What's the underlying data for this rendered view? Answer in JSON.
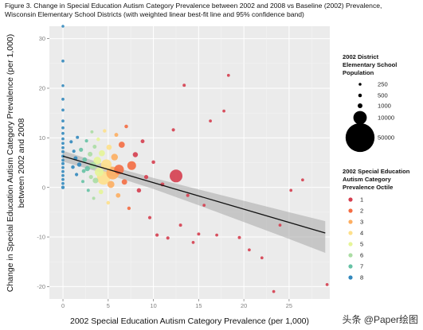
{
  "header": {
    "title_line1": "Figure 3. Change in Special Education Autism Category Prevalence between 2002 and 2008 vs Baseline (2002) Prevalence,",
    "title_line2": "Wisconsin Elementary School Districts (with weighted linear best-fit line and 95% confidence band)"
  },
  "watermark": {
    "text": "头条 @Paper绘图"
  },
  "chart_data": {
    "type": "scatter",
    "xlabel": "2002 Special Education Autism Category Prevalence (per 1,000)",
    "ylabel_line1": "Change in Special Education Autism Category Prevalence (per 1,000)",
    "ylabel_line2": "between 2002 and 2008",
    "xlim": [
      -1.5,
      29.5
    ],
    "ylim": [
      -22.5,
      32.5
    ],
    "x_ticks": [
      0,
      5,
      10,
      15,
      20,
      25
    ],
    "y_ticks": [
      -20,
      -10,
      0,
      10,
      20,
      30
    ],
    "grid": true,
    "background": "#ebebeb",
    "fit_line": {
      "x": [
        0,
        29
      ],
      "y": [
        6.3,
        -9.2
      ]
    },
    "confidence_band": {
      "x": [
        0,
        5,
        10,
        15,
        20,
        25,
        29
      ],
      "upper": [
        7.4,
        4.4,
        1.9,
        -0.4,
        -2.7,
        -5.0,
        -6.8
      ],
      "lower": [
        5.2,
        2.6,
        -0.3,
        -3.6,
        -7.0,
        -10.4,
        -13.2
      ]
    },
    "size_legend": {
      "title_lines": [
        "2002 District",
        "Elementary School",
        "Population"
      ],
      "entries": [
        {
          "label": "250",
          "value": 250
        },
        {
          "label": "500",
          "value": 500
        },
        {
          "label": "1000",
          "value": 1000
        },
        {
          "label": "10000",
          "value": 10000
        },
        {
          "label": "50000",
          "value": 50000
        }
      ]
    },
    "color_legend": {
      "title_lines": [
        "2002 Special Education",
        "Autism Category",
        "Prevalence Octile"
      ],
      "entries": [
        {
          "label": "1",
          "color": "#d53e4f"
        },
        {
          "label": "2",
          "color": "#f46d43"
        },
        {
          "label": "3",
          "color": "#fdae61"
        },
        {
          "label": "4",
          "color": "#fee08b"
        },
        {
          "label": "5",
          "color": "#e6f598"
        },
        {
          "label": "6",
          "color": "#abdda4"
        },
        {
          "label": "7",
          "color": "#66c2a5"
        },
        {
          "label": "8",
          "color": "#3288bd"
        }
      ]
    },
    "points": [
      {
        "x": 0,
        "y": 32.5,
        "pop": 250,
        "octile": 8
      },
      {
        "x": 0,
        "y": 25.5,
        "pop": 300,
        "octile": 8
      },
      {
        "x": 0,
        "y": 20.5,
        "pop": 250,
        "octile": 8
      },
      {
        "x": 0,
        "y": 17.8,
        "pop": 300,
        "octile": 8
      },
      {
        "x": 0,
        "y": 15.6,
        "pop": 300,
        "octile": 8
      },
      {
        "x": 0,
        "y": 13.4,
        "pop": 300,
        "octile": 8
      },
      {
        "x": 0,
        "y": 12.0,
        "pop": 300,
        "octile": 8
      },
      {
        "x": 0,
        "y": 10.9,
        "pop": 300,
        "octile": 8
      },
      {
        "x": 0,
        "y": 9.8,
        "pop": 300,
        "octile": 8
      },
      {
        "x": 0,
        "y": 8.9,
        "pop": 300,
        "octile": 8
      },
      {
        "x": 0,
        "y": 8.0,
        "pop": 300,
        "octile": 8
      },
      {
        "x": 0,
        "y": 7.2,
        "pop": 350,
        "octile": 8
      },
      {
        "x": 0,
        "y": 6.3,
        "pop": 350,
        "octile": 8
      },
      {
        "x": 0,
        "y": 5.5,
        "pop": 300,
        "octile": 8
      },
      {
        "x": 0,
        "y": 4.8,
        "pop": 350,
        "octile": 8
      },
      {
        "x": 0,
        "y": 4.0,
        "pop": 300,
        "octile": 8
      },
      {
        "x": 0,
        "y": 3.2,
        "pop": 300,
        "octile": 8
      },
      {
        "x": 0,
        "y": 2.4,
        "pop": 300,
        "octile": 8
      },
      {
        "x": 0,
        "y": 1.6,
        "pop": 300,
        "octile": 8
      },
      {
        "x": 0,
        "y": 0.8,
        "pop": 300,
        "octile": 8
      },
      {
        "x": 0,
        "y": 0.0,
        "pop": 450,
        "octile": 8
      },
      {
        "x": 0.9,
        "y": 9.2,
        "pop": 400,
        "octile": 8
      },
      {
        "x": 1.1,
        "y": 4.1,
        "pop": 500,
        "octile": 8
      },
      {
        "x": 1.2,
        "y": 7.3,
        "pop": 400,
        "octile": 8
      },
      {
        "x": 1.4,
        "y": 5.9,
        "pop": 600,
        "octile": 8
      },
      {
        "x": 1.5,
        "y": 2.6,
        "pop": 400,
        "octile": 8
      },
      {
        "x": 1.6,
        "y": 10.1,
        "pop": 350,
        "octile": 8
      },
      {
        "x": 1.8,
        "y": 4.6,
        "pop": 800,
        "octile": 8
      },
      {
        "x": 2.0,
        "y": 7.6,
        "pop": 700,
        "octile": 7
      },
      {
        "x": 2.2,
        "y": 1.2,
        "pop": 350,
        "octile": 7
      },
      {
        "x": 2.3,
        "y": 3.3,
        "pop": 600,
        "octile": 7
      },
      {
        "x": 2.4,
        "y": 5.6,
        "pop": 900,
        "octile": 7
      },
      {
        "x": 2.6,
        "y": 9.4,
        "pop": 400,
        "octile": 7
      },
      {
        "x": 2.7,
        "y": 3.8,
        "pop": 1200,
        "octile": 7
      },
      {
        "x": 2.8,
        "y": -0.6,
        "pop": 350,
        "octile": 7
      },
      {
        "x": 3.0,
        "y": 6.7,
        "pop": 1000,
        "octile": 6
      },
      {
        "x": 3.1,
        "y": 2.1,
        "pop": 700,
        "octile": 6
      },
      {
        "x": 3.2,
        "y": 11.2,
        "pop": 350,
        "octile": 6
      },
      {
        "x": 3.3,
        "y": 4.4,
        "pop": 2500,
        "octile": 6
      },
      {
        "x": 3.4,
        "y": -2.2,
        "pop": 350,
        "octile": 6
      },
      {
        "x": 3.5,
        "y": 8.2,
        "pop": 600,
        "octile": 6
      },
      {
        "x": 3.6,
        "y": 1.4,
        "pop": 1500,
        "octile": 6
      },
      {
        "x": 3.8,
        "y": 5.4,
        "pop": 3000,
        "octile": 5
      },
      {
        "x": 3.9,
        "y": 9.7,
        "pop": 500,
        "octile": 5
      },
      {
        "x": 4.0,
        "y": 3.1,
        "pop": 4000,
        "octile": 5
      },
      {
        "x": 4.2,
        "y": -0.9,
        "pop": 900,
        "octile": 5
      },
      {
        "x": 4.3,
        "y": 6.9,
        "pop": 1800,
        "octile": 5
      },
      {
        "x": 4.5,
        "y": 1.9,
        "pop": 10000,
        "octile": 4
      },
      {
        "x": 4.6,
        "y": 11.4,
        "pop": 450,
        "octile": 4
      },
      {
        "x": 4.8,
        "y": 4.6,
        "pop": 6000,
        "octile": 4
      },
      {
        "x": 5.0,
        "y": -3.1,
        "pop": 500,
        "octile": 4
      },
      {
        "x": 5.1,
        "y": 8.1,
        "pop": 1300,
        "octile": 4
      },
      {
        "x": 5.3,
        "y": 0.6,
        "pop": 2500,
        "octile": 3
      },
      {
        "x": 5.5,
        "y": 2.9,
        "pop": 9000,
        "octile": 3
      },
      {
        "x": 5.7,
        "y": 6.1,
        "pop": 2200,
        "octile": 3
      },
      {
        "x": 5.9,
        "y": 10.6,
        "pop": 600,
        "octile": 3
      },
      {
        "x": 6.1,
        "y": -1.6,
        "pop": 900,
        "octile": 3
      },
      {
        "x": 6.2,
        "y": 3.6,
        "pop": 5000,
        "octile": 2
      },
      {
        "x": 6.5,
        "y": 8.6,
        "pop": 1800,
        "octile": 2
      },
      {
        "x": 6.8,
        "y": 1.1,
        "pop": 1400,
        "octile": 2
      },
      {
        "x": 7.0,
        "y": 12.3,
        "pop": 500,
        "octile": 2
      },
      {
        "x": 7.3,
        "y": -4.2,
        "pop": 450,
        "octile": 2
      },
      {
        "x": 7.6,
        "y": 4.4,
        "pop": 4000,
        "octile": 2
      },
      {
        "x": 8.0,
        "y": 6.6,
        "pop": 1200,
        "octile": 1
      },
      {
        "x": 8.4,
        "y": -0.6,
        "pop": 800,
        "octile": 1
      },
      {
        "x": 8.8,
        "y": 9.3,
        "pop": 600,
        "octile": 1
      },
      {
        "x": 9.2,
        "y": 2.1,
        "pop": 700,
        "octile": 1
      },
      {
        "x": 9.6,
        "y": -6.1,
        "pop": 400,
        "octile": 1
      },
      {
        "x": 10.0,
        "y": 5.1,
        "pop": 500,
        "octile": 1
      },
      {
        "x": 10.4,
        "y": -9.6,
        "pop": 400,
        "octile": 1
      },
      {
        "x": 11.0,
        "y": 0.6,
        "pop": 600,
        "octile": 1
      },
      {
        "x": 11.6,
        "y": -10.2,
        "pop": 400,
        "octile": 1
      },
      {
        "x": 12.2,
        "y": 11.6,
        "pop": 400,
        "octile": 1
      },
      {
        "x": 12.5,
        "y": 2.3,
        "pop": 9000,
        "octile": 1
      },
      {
        "x": 13.0,
        "y": -7.6,
        "pop": 350,
        "octile": 1
      },
      {
        "x": 13.4,
        "y": 20.6,
        "pop": 350,
        "octile": 1
      },
      {
        "x": 13.8,
        "y": -1.6,
        "pop": 400,
        "octile": 1
      },
      {
        "x": 14.4,
        "y": -11.1,
        "pop": 300,
        "octile": 1
      },
      {
        "x": 15.0,
        "y": -9.4,
        "pop": 350,
        "octile": 1
      },
      {
        "x": 15.6,
        "y": -3.6,
        "pop": 300,
        "octile": 1
      },
      {
        "x": 16.3,
        "y": 13.4,
        "pop": 300,
        "octile": 1
      },
      {
        "x": 17.0,
        "y": -9.6,
        "pop": 300,
        "octile": 1
      },
      {
        "x": 17.8,
        "y": 15.4,
        "pop": 300,
        "octile": 1
      },
      {
        "x": 18.3,
        "y": 22.6,
        "pop": 300,
        "octile": 1
      },
      {
        "x": 19.5,
        "y": -10.1,
        "pop": 350,
        "octile": 1
      },
      {
        "x": 20.6,
        "y": -12.6,
        "pop": 300,
        "octile": 1
      },
      {
        "x": 22.0,
        "y": -14.2,
        "pop": 300,
        "octile": 1
      },
      {
        "x": 23.3,
        "y": -21.0,
        "pop": 300,
        "octile": 1
      },
      {
        "x": 24.0,
        "y": -7.6,
        "pop": 300,
        "octile": 1
      },
      {
        "x": 25.2,
        "y": -0.6,
        "pop": 300,
        "octile": 1
      },
      {
        "x": 26.5,
        "y": 1.5,
        "pop": 300,
        "octile": 1
      },
      {
        "x": 29.2,
        "y": -19.6,
        "pop": 300,
        "octile": 1
      }
    ]
  }
}
